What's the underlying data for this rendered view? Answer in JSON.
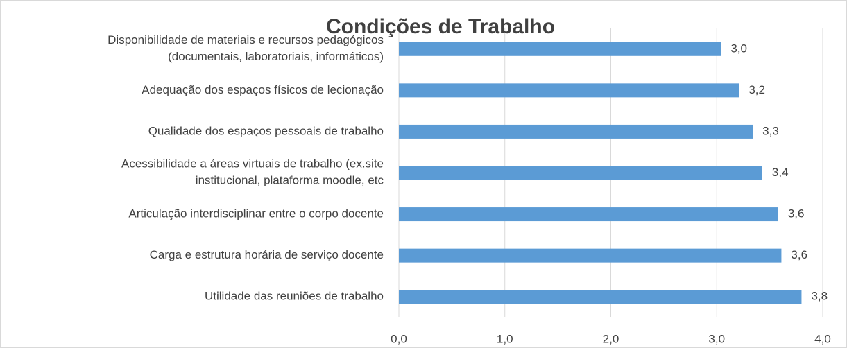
{
  "chart_data": {
    "type": "hbar",
    "title": "Condições de Trabalho",
    "categories": [
      "Disponibilidade de materiais e recursos pedagógicos\n(documentais, laboratoriais, informáticos)",
      "Adequação dos espaços físicos de lecionação",
      "Qualidade dos espaços pessoais de trabalho",
      "Acessibilidade a áreas virtuais de trabalho (ex.site\ninstitucional, plataforma moodle, etc",
      "Articulação interdisciplinar entre o corpo docente",
      "Carga e estrutura horária de serviço docente",
      "Utilidade das reuniões de trabalho"
    ],
    "values": [
      3.04,
      3.21,
      3.34,
      3.43,
      3.58,
      3.61,
      3.8
    ],
    "value_labels": [
      "3,0",
      "3,2",
      "3,3",
      "3,4",
      "3,6",
      "3,6",
      "3,8"
    ],
    "color": "#5b9bd5",
    "xlim": [
      0,
      4
    ],
    "xticks": [
      {
        "value": 0,
        "label": "0,0"
      },
      {
        "value": 1,
        "label": "1,0"
      },
      {
        "value": 2,
        "label": "2,0"
      },
      {
        "value": 3,
        "label": "3,0"
      },
      {
        "value": 4,
        "label": "4,0"
      }
    ],
    "grid": true
  }
}
